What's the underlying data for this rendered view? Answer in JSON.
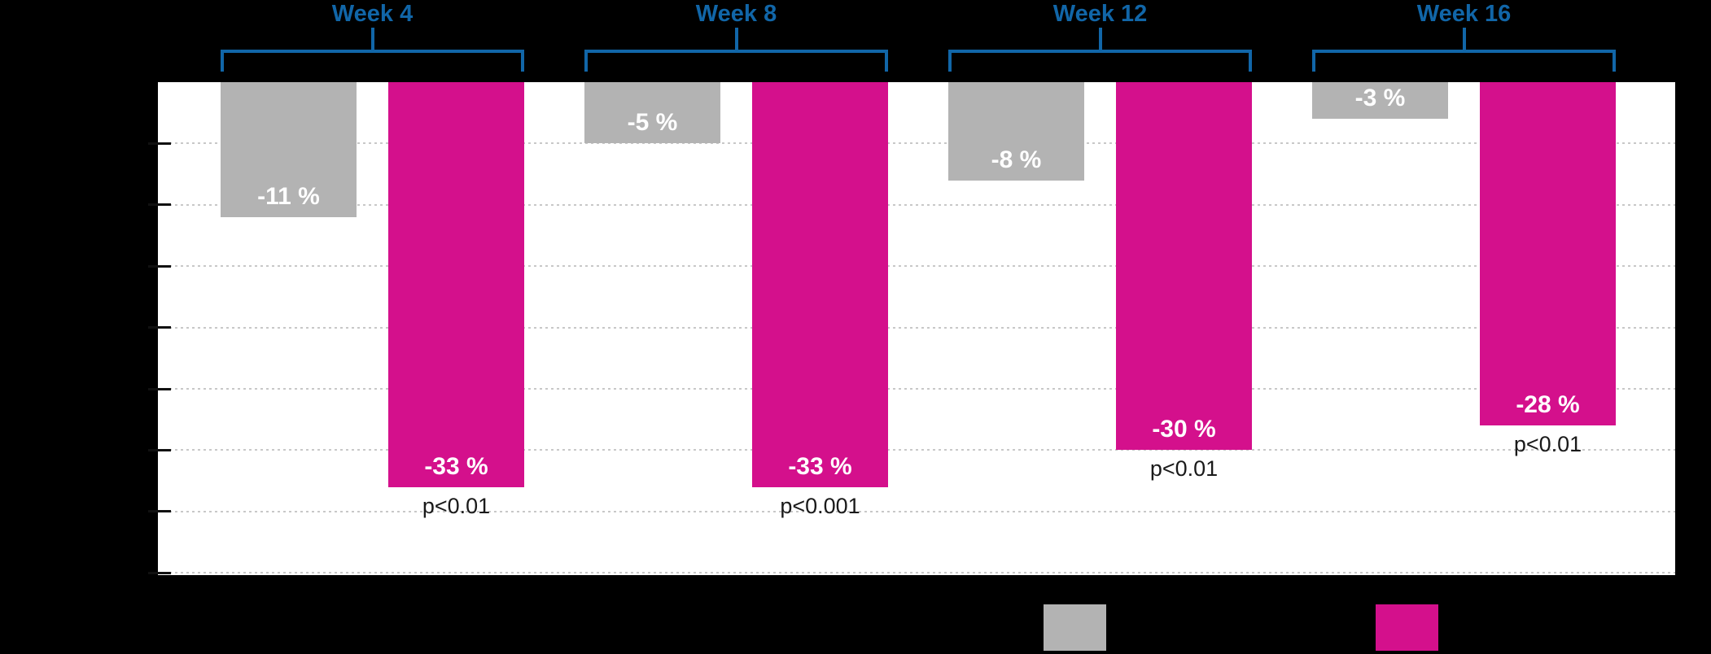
{
  "page": {
    "background_color": "#000000"
  },
  "chart_data": {
    "type": "bar",
    "categories": [
      "Week 4",
      "Week 8",
      "Week 12",
      "Week 16"
    ],
    "series": [
      {
        "name": "gray",
        "color": "#b3b3b3",
        "values": [
          -11,
          -5,
          -8,
          -3
        ],
        "bar_labels": [
          "-11 %",
          "-5 %",
          "-8 %",
          "-3 %"
        ]
      },
      {
        "name": "magenta",
        "color": "#d4108c",
        "values": [
          -33,
          -33,
          -30,
          -28
        ],
        "bar_labels": [
          "-33 %",
          "-33 %",
          "-30 %",
          "-28 %"
        ],
        "p_value_labels": [
          "p<0.01",
          "p<0.001",
          "p<0.01",
          "p<0.01"
        ]
      }
    ],
    "ylim": [
      -40,
      0
    ],
    "gridline_step_pct": 5,
    "grid": "horizontal dotted",
    "unit": "%",
    "legend_position": "bottom",
    "colors": {
      "plot_background": "#ffffff",
      "gridline": "#c8c8c8",
      "tick": "#111111",
      "group_label": "#1166a8",
      "bracket": "#1166a8",
      "bar_value_label": "#ffffff",
      "p_value_label": "#1a1a1a"
    }
  }
}
